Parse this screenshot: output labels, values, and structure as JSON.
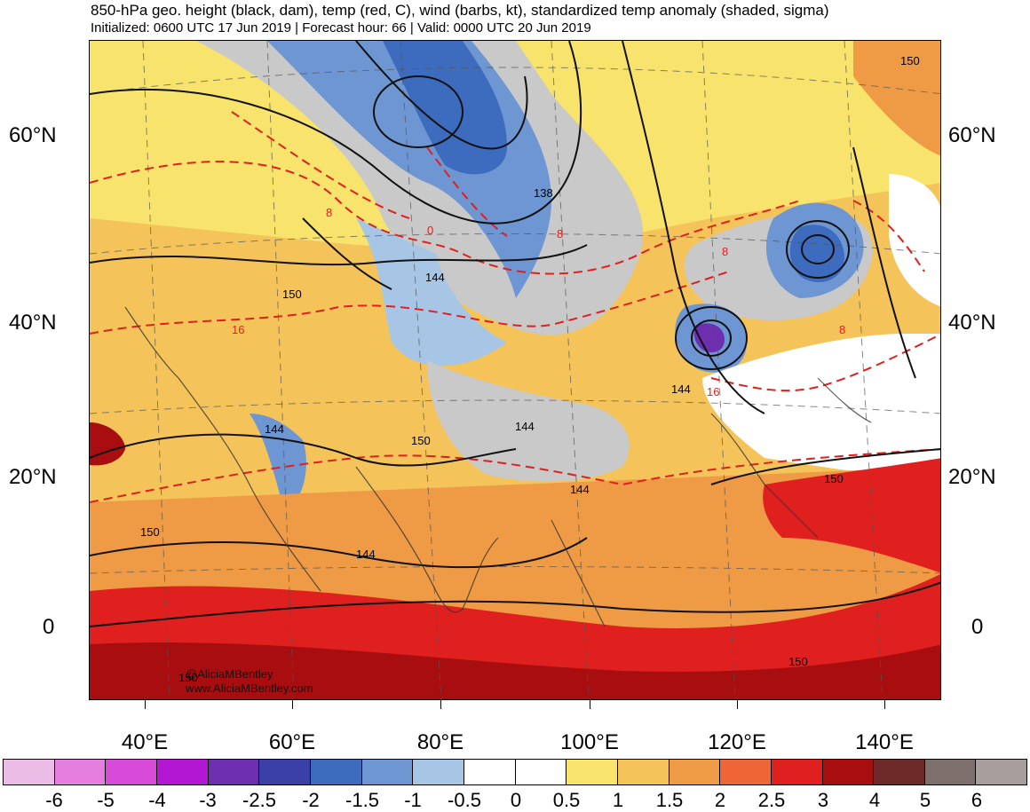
{
  "header": {
    "title": "850-hPa geo. height (black, dam), temp (red, C), wind (barbs, kt), standardized temp anomaly (shaded, sigma)",
    "subtitle": "Initialized: 0600 UTC 17 Jun 2019 | Forecast hour: 66 | Valid: 0000 UTC 20 Jun 2019"
  },
  "map": {
    "lat_labels": [
      "60°N",
      "40°N",
      "20°N",
      "0"
    ],
    "lon_labels": [
      "40°E",
      "60°E",
      "80°E",
      "100°E",
      "120°E",
      "140°E"
    ],
    "height_contour_labels": [
      "150",
      "138",
      "144",
      "150",
      "144",
      "150",
      "144",
      "144",
      "144",
      "150",
      "150",
      "144",
      "150",
      "150"
    ],
    "temp_contour_labels": [
      "8",
      "0",
      "8",
      "8",
      "16",
      "8",
      "16"
    ],
    "credit_line1": "@AliciaMBentley",
    "credit_line2": "www.AliciaMBentley.com"
  },
  "colorbar": {
    "labels": [
      "-6",
      "-5",
      "-4",
      "-3",
      "-2.5",
      "-2",
      "-1.5",
      "-1",
      "-0.5",
      "0",
      "0.5",
      "1",
      "1.5",
      "2",
      "2.5",
      "3",
      "4",
      "5",
      "6"
    ],
    "colors": [
      "#ebbde6",
      "#e47fe0",
      "#d84bd8",
      "#b417d4",
      "#6d2fb0",
      "#3a40a8",
      "#3d6bbe",
      "#6e96d2",
      "#a7c6e6",
      "#ffffff",
      "#ffffff",
      "#f8e36c",
      "#f4c45a",
      "#ef9b45",
      "#ee6636",
      "#e01f1f",
      "#a80d10",
      "#6e2a28",
      "#7d6f6b",
      "#a89e9b"
    ]
  }
}
